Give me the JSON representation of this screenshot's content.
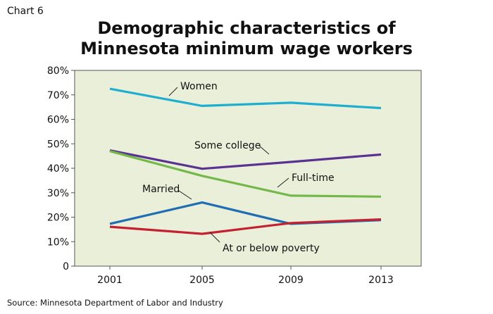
{
  "header": {
    "chart_label": "Chart 6",
    "title_line1": "Demographic characteristics of",
    "title_line2": "Minnesota minimum wage workers"
  },
  "footer": {
    "source": "Source: Minnesota Department of Labor and Industry"
  },
  "chart_data": {
    "type": "line",
    "title": "Demographic characteristics of Minnesota minimum wage workers",
    "xlabel": "",
    "ylabel": "",
    "x": [
      "2001",
      "2005",
      "2009",
      "2013"
    ],
    "ylim": [
      0,
      80
    ],
    "yticks": [
      "0",
      "10%",
      "20%",
      "30%",
      "40%",
      "50%",
      "60%",
      "70%",
      "80%"
    ],
    "grid": false,
    "background": "#e9efd9",
    "series": [
      {
        "name": "Women",
        "values": [
          72.5,
          65.5,
          66.8,
          64.6
        ],
        "color": "#1eaecf"
      },
      {
        "name": "Some college",
        "values": [
          47.3,
          39.8,
          42.6,
          45.6
        ],
        "color": "#5b3291"
      },
      {
        "name": "Full-time",
        "values": [
          47.0,
          36.9,
          28.8,
          28.4
        ],
        "color": "#74b84b"
      },
      {
        "name": "Married",
        "values": [
          17.3,
          26.0,
          17.3,
          18.8
        ],
        "color": "#1f6db3"
      },
      {
        "name": "At or below poverty",
        "values": [
          16.1,
          13.2,
          17.6,
          19.1
        ],
        "color": "#c4202f"
      }
    ]
  }
}
